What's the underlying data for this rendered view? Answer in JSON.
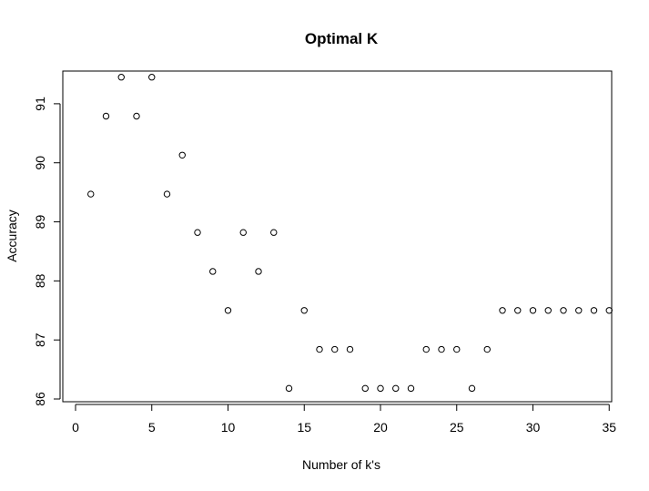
{
  "chart_data": {
    "type": "scatter",
    "title": "Optimal K",
    "xlabel": "Number of k's",
    "ylabel": "Accuracy",
    "xlim": [
      0,
      36
    ],
    "ylim": [
      86,
      91.6
    ],
    "xticks": [
      0,
      5,
      10,
      15,
      20,
      25,
      30,
      35
    ],
    "yticks": [
      86,
      87,
      88,
      89,
      90,
      91
    ],
    "grid": false,
    "legend": "none",
    "marker": "open-circle",
    "x": [
      1,
      2,
      3,
      4,
      5,
      6,
      7,
      8,
      9,
      10,
      11,
      12,
      13,
      14,
      15,
      16,
      17,
      18,
      19,
      20,
      21,
      22,
      23,
      24,
      25,
      26,
      27,
      28,
      29,
      30,
      31,
      32,
      33,
      34,
      35
    ],
    "y": [
      89.47,
      90.79,
      91.45,
      90.79,
      91.45,
      89.47,
      90.13,
      88.82,
      88.16,
      87.5,
      88.82,
      88.16,
      88.82,
      86.18,
      87.5,
      86.84,
      86.84,
      86.84,
      86.18,
      86.18,
      86.18,
      86.18,
      86.84,
      86.84,
      86.84,
      86.18,
      86.84,
      87.5,
      87.5,
      87.5,
      87.5,
      87.5,
      87.5,
      87.5,
      87.5
    ]
  }
}
